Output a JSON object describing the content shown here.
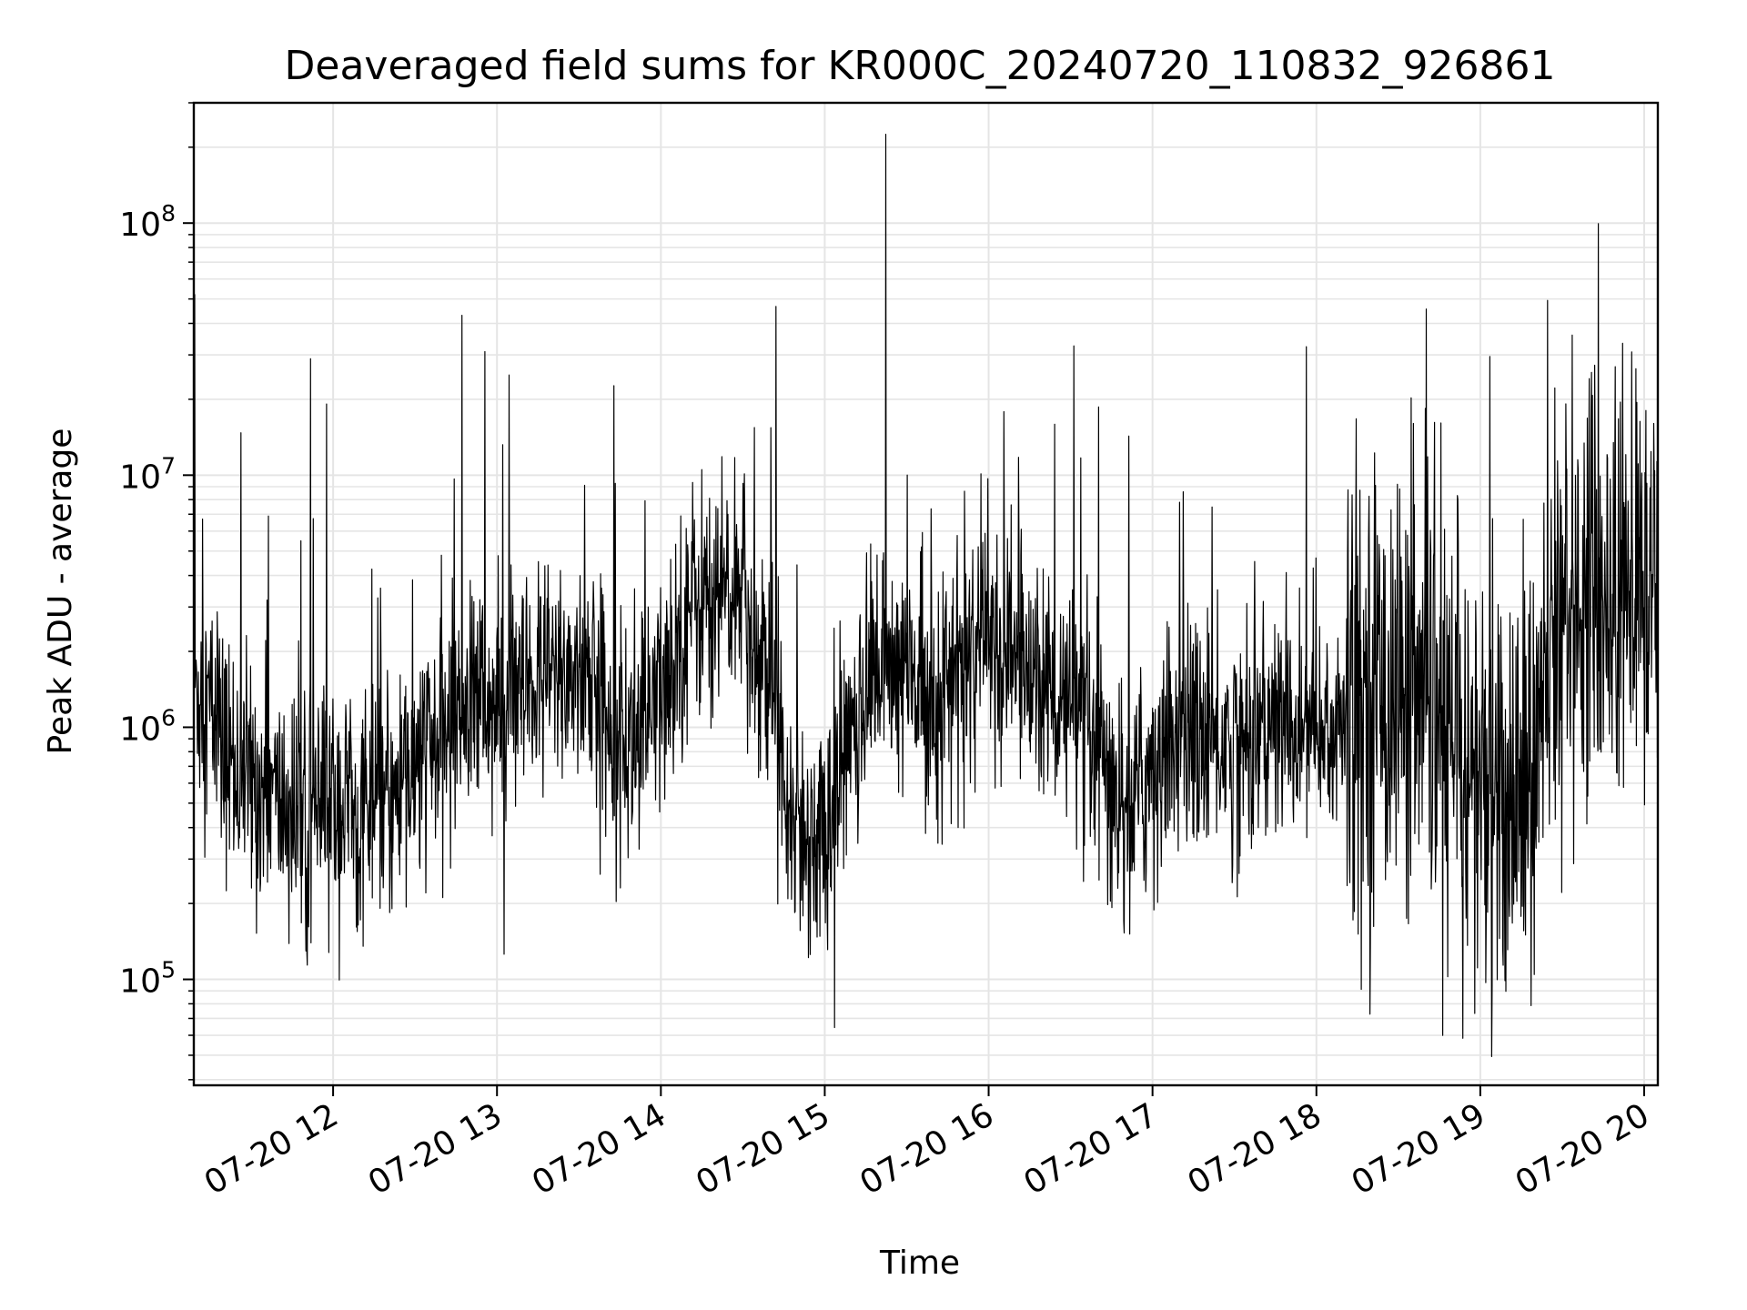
{
  "chart_data": {
    "type": "line",
    "title": "Deaveraged field sums for KR000C_20240720_110832_926861",
    "xlabel": "Time",
    "ylabel": "Peak ADU - average",
    "yscale": "log",
    "ylim": [
      38000,
      300000000
    ],
    "xlim": [
      "07-20 11:09",
      "07-20 20:05"
    ],
    "grid": true,
    "line_color": "#000000",
    "grid_color": "#e5e5e5",
    "x_ticks": [
      "07-20 12",
      "07-20 13",
      "07-20 14",
      "07-20 15",
      "07-20 16",
      "07-20 17",
      "07-20 18",
      "07-20 19",
      "07-20 20"
    ],
    "y_ticks": [
      {
        "value": 100000,
        "base": "10",
        "exp": "5"
      },
      {
        "value": 1000000,
        "base": "10",
        "exp": "6"
      },
      {
        "value": 10000000,
        "base": "10",
        "exp": "7"
      },
      {
        "value": 100000000,
        "base": "10",
        "exp": "8"
      }
    ],
    "series": [
      {
        "x": [
          "07-20 11:09",
          "07-20 11:15",
          "07-20 11:20",
          "07-20 11:30",
          "07-20 11:40",
          "07-20 11:50",
          "07-20 12:00",
          "07-20 12:10",
          "07-20 12:20",
          "07-20 12:30",
          "07-20 12:40",
          "07-20 12:50",
          "07-20 13:00",
          "07-20 13:10",
          "07-20 13:20",
          "07-20 13:30",
          "07-20 13:40",
          "07-20 13:50",
          "07-20 14:00",
          "07-20 14:10",
          "07-20 14:20",
          "07-20 14:30",
          "07-20 14:40",
          "07-20 14:50",
          "07-20 15:00",
          "07-20 15:10",
          "07-20 15:20",
          "07-20 15:30",
          "07-20 15:40",
          "07-20 15:50",
          "07-20 16:00",
          "07-20 16:10",
          "07-20 16:20",
          "07-20 16:30",
          "07-20 16:40",
          "07-20 16:50",
          "07-20 17:00",
          "07-20 17:10",
          "07-20 17:20",
          "07-20 17:30",
          "07-20 17:40",
          "07-20 17:50",
          "07-20 18:00",
          "07-20 18:10",
          "07-20 18:20",
          "07-20 18:30",
          "07-20 18:40",
          "07-20 18:50",
          "07-20 19:00",
          "07-20 19:10",
          "07-20 19:20",
          "07-20 19:30",
          "07-20 19:40",
          "07-20 19:50",
          "07-20 20:00",
          "07-20 20:05"
        ],
        "y": [
          1500000,
          1200000,
          800000,
          600000,
          500000,
          400000,
          500000,
          450000,
          500000,
          650000,
          900000,
          1400000,
          1100000,
          1300000,
          1600000,
          1700000,
          1200000,
          800000,
          1300000,
          3000000,
          3500000,
          3000000,
          1500000,
          400000,
          350000,
          1000000,
          1800000,
          1600000,
          1300000,
          1700000,
          2100000,
          1900000,
          1500000,
          1100000,
          700000,
          450000,
          700000,
          1000000,
          900000,
          850000,
          1000000,
          1000000,
          900000,
          1000000,
          1500000,
          1400000,
          1000000,
          800000,
          600000,
          500000,
          700000,
          3000000,
          4000000,
          3000000,
          3500000,
          2500000
        ]
      }
    ]
  }
}
